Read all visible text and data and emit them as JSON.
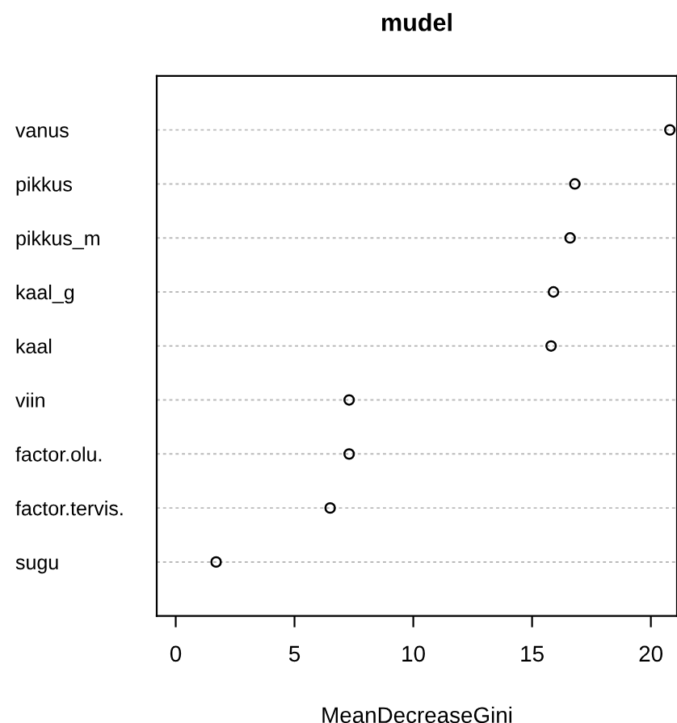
{
  "chart_data": {
    "type": "scatter",
    "title": "mudel",
    "xlabel": "MeanDecreaseGini",
    "categories": [
      "vanus",
      "pikkus",
      "pikkus_m",
      "kaal_g",
      "kaal",
      "viin",
      "factor.olu.",
      "factor.tervis.",
      "sugu"
    ],
    "series": [
      {
        "color": "#000000",
        "values": [
          20.8,
          16.8,
          16.6,
          15.9,
          15.8,
          7.3,
          7.3,
          6.5,
          1.7
        ]
      }
    ],
    "orientation": "horizontal",
    "marker": "circle",
    "xlim": [
      -0.8,
      21.1
    ],
    "xticks": [
      0,
      5,
      10,
      15,
      20
    ],
    "grid": "y"
  }
}
